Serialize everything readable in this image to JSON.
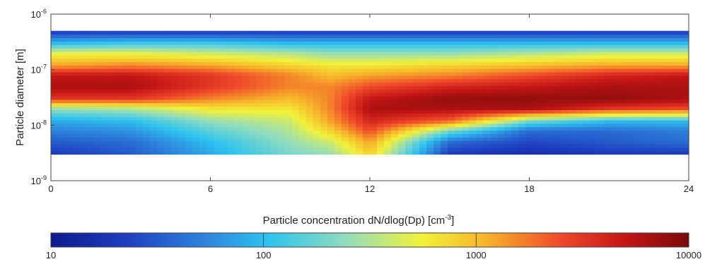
{
  "chart_data": {
    "type": "heatmap",
    "title": "",
    "xlabel": "",
    "ylabel": "Particle diameter [m]",
    "x_ticks": [
      "0",
      "6",
      "12",
      "18",
      "24"
    ],
    "x_tick_values": [
      0,
      6,
      12,
      18,
      24
    ],
    "xlim": [
      0,
      24
    ],
    "y_scale": "log",
    "y_ticks": [
      {
        "base": "10",
        "exp": "-6",
        "value": 1e-06
      },
      {
        "base": "10",
        "exp": "-7",
        "value": 1e-07
      },
      {
        "base": "10",
        "exp": "-8",
        "value": 1e-08
      },
      {
        "base": "10",
        "exp": "-9",
        "value": 1e-09
      }
    ],
    "ylim": [
      1e-09,
      1e-06
    ],
    "data_y_range": [
      3e-09,
      5e-07
    ],
    "grid": false,
    "colorbar": {
      "label_main": "Particle concentration dN/dlog(Dp) [cm",
      "label_exp": "-3",
      "label_close": "]",
      "scale": "log",
      "ticks": [
        "10",
        "100",
        "1000",
        "10000"
      ],
      "tick_values": [
        10,
        100,
        1000,
        10000
      ],
      "range": [
        10,
        10000
      ],
      "colormap": "jet"
    },
    "time_hours": [
      0,
      3,
      6,
      9,
      10.5,
      12,
      15,
      18,
      21,
      24
    ],
    "diameter_m": [
      3e-09,
      5e-09,
      8e-09,
      1.2e-08,
      2e-08,
      3e-08,
      5e-08,
      8e-08,
      1.2e-07,
      2e-07,
      3e-07,
      5e-07
    ],
    "log10_concentration": [
      [
        1.3,
        1.5,
        1.9,
        2.3,
        2.4,
        2.9,
        1.3,
        1.2,
        1.3,
        1.3
      ],
      [
        1.5,
        1.6,
        2.0,
        2.4,
        2.6,
        3.1,
        1.6,
        1.4,
        1.5,
        1.6
      ],
      [
        1.7,
        1.8,
        2.2,
        2.5,
        2.9,
        3.4,
        2.3,
        1.6,
        1.6,
        1.7
      ],
      [
        1.9,
        2.0,
        2.4,
        2.6,
        3.1,
        3.6,
        3.3,
        2.3,
        2.0,
        2.0
      ],
      [
        2.4,
        2.5,
        2.8,
        2.8,
        3.2,
        3.8,
        3.8,
        3.8,
        3.5,
        3.4
      ],
      [
        3.5,
        3.5,
        3.2,
        3.0,
        3.2,
        3.7,
        3.9,
        3.9,
        3.9,
        3.8
      ],
      [
        3.8,
        3.8,
        3.5,
        3.2,
        3.2,
        3.4,
        3.6,
        3.7,
        3.8,
        3.8
      ],
      [
        3.7,
        3.7,
        3.5,
        3.2,
        3.0,
        3.1,
        3.2,
        3.4,
        3.6,
        3.7
      ],
      [
        3.1,
        3.2,
        3.1,
        2.9,
        2.8,
        2.8,
        2.9,
        3.0,
        3.1,
        3.1
      ],
      [
        2.7,
        2.7,
        2.6,
        2.5,
        2.4,
        2.4,
        2.4,
        2.5,
        2.6,
        2.6
      ],
      [
        2.0,
        2.1,
        2.1,
        2.0,
        2.0,
        2.0,
        2.0,
        2.0,
        2.0,
        2.0
      ],
      [
        1.3,
        1.3,
        1.3,
        1.3,
        1.3,
        1.3,
        1.3,
        1.3,
        1.3,
        1.3
      ]
    ]
  }
}
